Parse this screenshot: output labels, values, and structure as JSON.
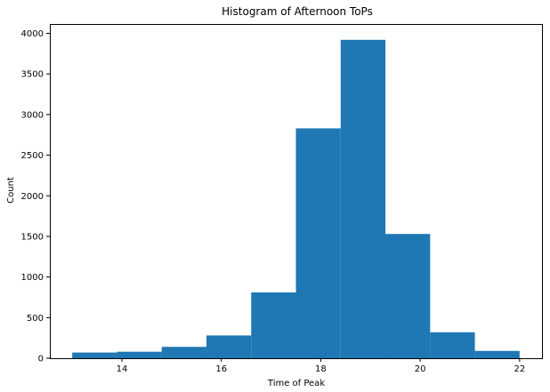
{
  "chart_data": {
    "type": "bar",
    "title": "Histogram of Afternoon ToPs",
    "xlabel": "Time of Peak",
    "ylabel": "Count",
    "bin_edges": [
      13.0,
      13.9,
      14.8,
      15.7,
      16.6,
      17.5,
      18.4,
      19.3,
      20.2,
      21.1,
      22.0
    ],
    "values": [
      70,
      80,
      140,
      280,
      810,
      2830,
      3920,
      1530,
      320,
      90
    ],
    "xlim": [
      12.55,
      22.45
    ],
    "ylim": [
      0,
      4115
    ],
    "xticks": [
      "14",
      "16",
      "18",
      "20",
      "22"
    ],
    "yticks": [
      "0",
      "500",
      "1000",
      "1500",
      "2000",
      "2500",
      "3000",
      "3500",
      "4000"
    ],
    "bar_color": "#1f77b4",
    "grid": false,
    "legend": "none"
  }
}
